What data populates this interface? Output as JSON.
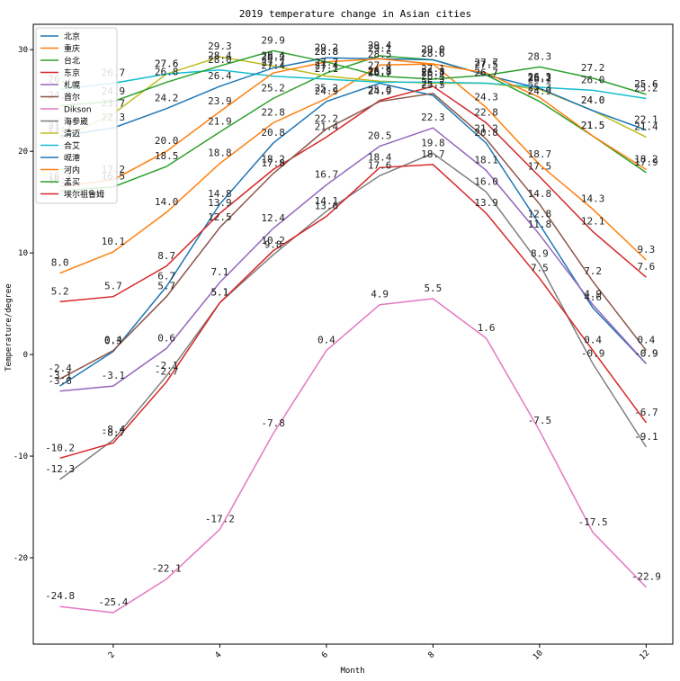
{
  "chart_data": {
    "type": "line",
    "title": "2019 temperature change in Asian cities",
    "xlabel": "Month",
    "ylabel": "Temperature/degree",
    "x": [
      1,
      2,
      3,
      4,
      5,
      6,
      7,
      8,
      9,
      10,
      11,
      12
    ],
    "xlim": [
      0.5,
      12.5
    ],
    "ylim": [
      -28.5,
      32.5
    ],
    "xticks": [
      2,
      4,
      6,
      8,
      10,
      12
    ],
    "yticks": [
      -20,
      -10,
      0,
      10,
      20,
      30
    ],
    "legend_position": "upper-left",
    "series": [
      {
        "name": "北京",
        "color": "#1f77b4",
        "values": [
          -3.1,
          0.3,
          6.7,
          14.8,
          20.8,
          24.9,
          26.7,
          25.5,
          20.8,
          12.8,
          4.6,
          -0.9
        ]
      },
      {
        "name": "重庆",
        "color": "#ff7f0e",
        "values": [
          8.0,
          10.1,
          14.0,
          18.8,
          22.8,
          25.2,
          28.5,
          28.6,
          24.3,
          18.7,
          14.3,
          9.3
        ]
      },
      {
        "name": "台北",
        "color": "#2ca02c",
        "values": [
          16.1,
          16.5,
          18.5,
          21.9,
          25.2,
          27.7,
          29.4,
          29.0,
          27.5,
          24.9,
          21.5,
          17.9
        ]
      },
      {
        "name": "东京",
        "color": "#d62728",
        "values": [
          5.2,
          5.7,
          8.7,
          13.9,
          18.2,
          21.4,
          25.0,
          26.4,
          22.8,
          17.5,
          12.1,
          7.6
        ]
      },
      {
        "name": "札幌",
        "color": "#9467bd",
        "values": [
          -3.6,
          -3.1,
          0.6,
          7.1,
          12.4,
          16.7,
          20.5,
          22.3,
          18.1,
          11.8,
          4.9,
          -0.9
        ]
      },
      {
        "name": "首尔",
        "color": "#8c564b",
        "values": [
          -2.4,
          0.4,
          5.7,
          12.5,
          17.8,
          22.2,
          24.9,
          25.7,
          21.2,
          14.8,
          7.2,
          0.4
        ]
      },
      {
        "name": "Dikson",
        "color": "#e377c2",
        "values": [
          -24.8,
          -25.4,
          -22.1,
          -17.2,
          -7.8,
          0.4,
          4.9,
          5.5,
          1.6,
          -7.5,
          -17.5,
          -22.9
        ]
      },
      {
        "name": "海参崴",
        "color": "#7f7f7f",
        "values": [
          -12.3,
          -8.4,
          -2.1,
          5.1,
          9.8,
          14.1,
          17.6,
          19.8,
          16.0,
          8.9,
          -0.9,
          -9.1
        ]
      },
      {
        "name": "清迈",
        "color": "#bcbd22",
        "values": [
          21.2,
          23.7,
          27.6,
          29.3,
          28.4,
          27.4,
          26.9,
          26.7,
          26.7,
          26.1,
          24.0,
          21.4
        ]
      },
      {
        "name": "合艾",
        "color": "#17becf",
        "values": [
          26.1,
          26.7,
          27.6,
          28.0,
          27.4,
          27.1,
          26.8,
          26.8,
          26.7,
          26.3,
          26.0,
          25.2
        ]
      },
      {
        "name": "岘港",
        "color": "#1f77b4",
        "values": [
          21.5,
          22.3,
          24.2,
          26.4,
          28.2,
          29.2,
          29.1,
          29.0,
          27.5,
          26.2,
          24.0,
          22.1
        ]
      },
      {
        "name": "河内",
        "color": "#ff7f0e",
        "values": [
          16.5,
          17.2,
          20.0,
          23.9,
          27.7,
          28.8,
          29.1,
          28.6,
          27.7,
          25.3,
          21.5,
          18.2
        ]
      },
      {
        "name": "孟买",
        "color": "#2ca02c",
        "values": [
          24.5,
          24.9,
          26.8,
          28.4,
          29.9,
          28.8,
          27.4,
          27.1,
          27.5,
          28.3,
          27.2,
          25.6
        ]
      },
      {
        "name": "埃尔祖鲁姆",
        "color": "#d62728",
        "values": [
          -10.2,
          -8.7,
          -2.7,
          5.1,
          10.2,
          13.6,
          18.4,
          18.7,
          13.9,
          7.5,
          0.4,
          -6.7
        ]
      }
    ]
  }
}
